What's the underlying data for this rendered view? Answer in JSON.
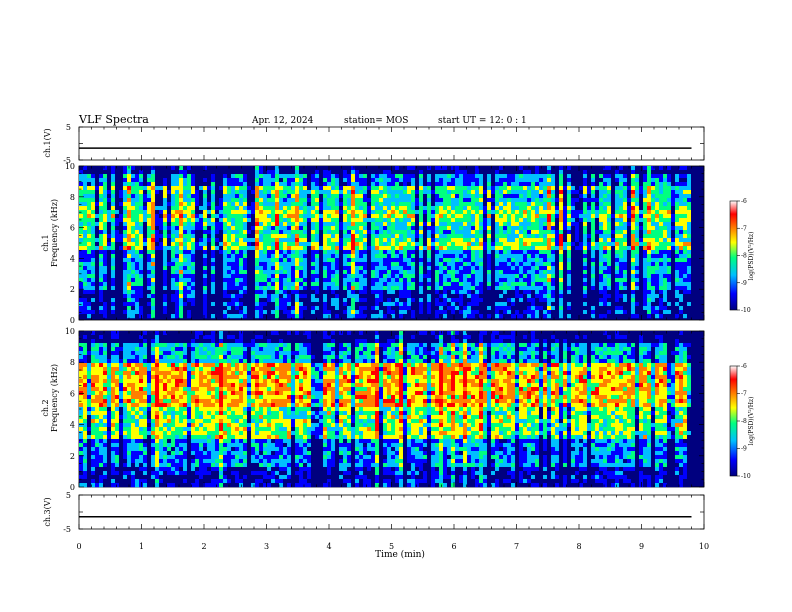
{
  "header": {
    "title": "VLF Spectra",
    "date": "Apr. 12, 2024",
    "station": "station= MOS",
    "start": "start  UT =   12: 0  : 1"
  },
  "chart_data": [
    {
      "type": "line",
      "panel": "ch1-waveform",
      "ylabel": "ch.1(V)",
      "ylim": [
        -5,
        5
      ],
      "yticks": [
        "5",
        "-5"
      ],
      "xlim": [
        0,
        10
      ],
      "series": [
        {
          "x": [
            0,
            9.8
          ],
          "values": [
            -1.4,
            -1.4
          ]
        }
      ]
    },
    {
      "type": "heatmap",
      "panel": "ch1-spectrogram",
      "ylabel_top": "ch.1",
      "ylabel": "Frequency (kHz)",
      "ylim": [
        0,
        10
      ],
      "yticks": [
        "0",
        "2",
        "4",
        "6",
        "8",
        "10"
      ],
      "xlim": [
        0,
        10
      ],
      "data_end_min": 9.8,
      "colorbar": {
        "label": "log(PSD)(V²/Hz)",
        "range": [
          -10,
          -6
        ],
        "ticks": [
          "-6",
          "-7",
          "-8",
          "-9",
          "-10"
        ]
      }
    },
    {
      "type": "heatmap",
      "panel": "ch2-spectrogram",
      "ylabel_top": "ch.2",
      "ylabel": "Frequency (kHz)",
      "ylim": [
        0,
        10
      ],
      "yticks": [
        "0",
        "2",
        "4",
        "6",
        "8",
        "10"
      ],
      "xlim": [
        0,
        10
      ],
      "data_end_min": 9.8,
      "colorbar": {
        "label": "log(PSD)(V²/Hz)",
        "range": [
          -10,
          -6
        ],
        "ticks": [
          "-6",
          "-7",
          "-8",
          "-9",
          "-10"
        ]
      }
    },
    {
      "type": "line",
      "panel": "ch3-waveform",
      "ylabel": "ch.3(V)",
      "ylim": [
        -5,
        5
      ],
      "yticks": [
        "5",
        "-5"
      ],
      "xlim": [
        0,
        10
      ],
      "series": [
        {
          "x": [
            0,
            9.8
          ],
          "values": [
            -1.4,
            -1.4
          ]
        }
      ]
    }
  ],
  "xaxis": {
    "label": "Time (min)",
    "ticks": [
      "0",
      "1",
      "2",
      "3",
      "4",
      "5",
      "6",
      "7",
      "8",
      "9",
      "10"
    ]
  },
  "colors": {
    "scale": [
      "#00007f",
      "#0000ff",
      "#00bfff",
      "#00ff80",
      "#ffff00",
      "#ff8000",
      "#ff0000",
      "#ffffff"
    ]
  }
}
